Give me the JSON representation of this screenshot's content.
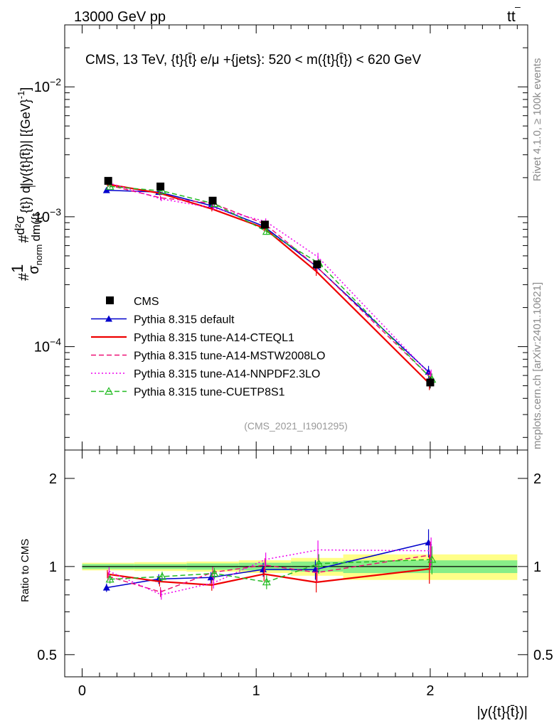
{
  "header": {
    "left": "13000 GeV pp",
    "right_main": "tt",
    "right_bar": "–"
  },
  "title": "CMS, 13 TeV, {t}{t̄} e/μ +{jets}: 520 < m({t}{t̄}) < 620 GeV",
  "ylabel": "#1/σ_norm #d²σ/dm({t}{t̄}) d|y({t}{t̄})| [{GeV}⁻¹]",
  "ylabel_parts": {
    "hash1": "#",
    "one": "1",
    "sigma_norm": "σ",
    "norm_sub": "norm",
    "hash2": "#",
    "d2sigma": "d²σ",
    "dm_frac": "dm({t",
    "rest": "{t}) d|y({t}{t̄})| [{GeV}",
    "exp": "-1",
    "close": "]"
  },
  "ratio_ylabel": "Ratio to CMS",
  "xlabel": "|y({t}{t̄})|",
  "right_side": {
    "rivet": "Rivet 4.1.0, ≥ 100k events",
    "mcplots": "mcplots.cern.ch [arXiv:2401.10621]"
  },
  "analysis_id": "(CMS_2021_I1901295)",
  "legend": [
    {
      "label": "CMS",
      "color": "#000000"
    },
    {
      "label": "Pythia 8.315 default",
      "color": "#0000cc"
    },
    {
      "label": "Pythia 8.315 tune-A14-CTEQL1",
      "color": "#ee0000"
    },
    {
      "label": "Pythia 8.315 tune-A14-MSTW2008LO",
      "color": "#ee1177"
    },
    {
      "label": "Pythia 8.315 tune-A14-NNPDF2.3LO",
      "color": "#ee00ee"
    },
    {
      "label": "Pythia 8.315 tune-CUETP8S1",
      "color": "#22bb22"
    }
  ],
  "main_yticks": [
    {
      "base": "10",
      "exp": "−2",
      "value": 0.01
    },
    {
      "base": "10",
      "exp": "−3",
      "value": 0.001
    },
    {
      "base": "10",
      "exp": "−4",
      "value": 0.0001
    }
  ],
  "ratio_yticks": [
    {
      "label": "2",
      "value": 2
    },
    {
      "label": "1",
      "value": 1
    },
    {
      "label": "0.5",
      "value": 0.5
    }
  ],
  "xticks": [
    {
      "label": "0",
      "value": 0
    },
    {
      "label": "1",
      "value": 1
    },
    {
      "label": "2",
      "value": 2
    }
  ],
  "chart_data": {
    "type": "line",
    "title": "CMS, 13 TeV, {t}{t̄} e/μ +{jets}: 520 < m({t}{t̄}) < 620 GeV",
    "xlabel": "|y({t}{t̄})|",
    "ylabel": "1/σ_norm d²σ/dm({t}{t̄}) d|y({t}{t̄})| [GeV⁻¹]",
    "yscale": "log",
    "xlim": [
      -0.1,
      2.56
    ],
    "ylim": [
      1.6e-05,
      0.03
    ],
    "ratio_ylim": [
      0.42,
      2.5
    ],
    "x": [
      0.15,
      0.45,
      0.75,
      1.05,
      1.35,
      2.0
    ],
    "x_edges": [
      0.0,
      0.3,
      0.6,
      0.9,
      1.2,
      1.5,
      2.5
    ],
    "data": {
      "name": "CMS",
      "values": [
        0.00189,
        0.00171,
        0.00133,
        0.00087,
        0.00043,
        5.3e-05
      ],
      "rel_err_inner": [
        0.02,
        0.02,
        0.025,
        0.03,
        0.04,
        0.05
      ],
      "rel_err_outer": [
        0.03,
        0.035,
        0.04,
        0.05,
        0.07,
        0.1
      ]
    },
    "series": [
      {
        "name": "Pythia 8.315 default",
        "color": "#0000cc",
        "style": "solid",
        "marker": "triangle-filled",
        "values": [
          0.0016,
          0.00155,
          0.00122,
          0.00085,
          0.00042,
          6.4e-05
        ]
      },
      {
        "name": "Pythia 8.315 tune-A14-CTEQL1",
        "color": "#ee0000",
        "style": "solid",
        "marker": "none",
        "values": [
          0.00178,
          0.00152,
          0.00115,
          0.00082,
          0.00038,
          5.2e-05
        ]
      },
      {
        "name": "Pythia 8.315 tune-A14-MSTW2008LO",
        "color": "#ee1177",
        "style": "dashed",
        "marker": "none",
        "values": [
          0.00175,
          0.0014,
          0.00127,
          0.00088,
          0.00041,
          5.8e-05
        ]
      },
      {
        "name": "Pythia 8.315 tune-A14-NNPDF2.3LO",
        "color": "#ee00ee",
        "style": "dotted",
        "marker": "none",
        "values": [
          0.00182,
          0.00137,
          0.00117,
          0.00092,
          0.00049,
          6e-05
        ]
      },
      {
        "name": "Pythia 8.315 tune-CUETP8S1",
        "color": "#22bb22",
        "style": "dashed",
        "marker": "triangle-open",
        "values": [
          0.00171,
          0.00158,
          0.00126,
          0.00077,
          0.00044,
          5.6e-05
        ]
      }
    ]
  }
}
